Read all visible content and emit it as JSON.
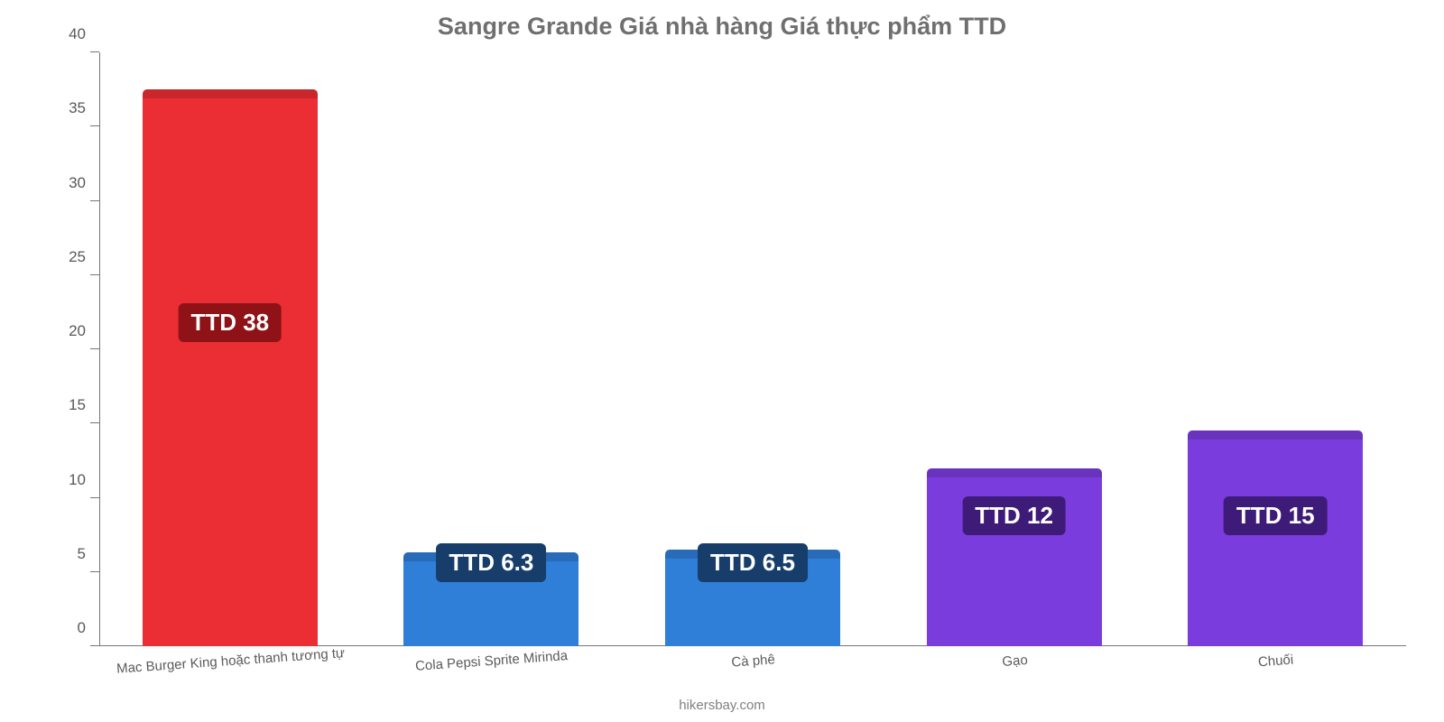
{
  "title": "Sangre Grande Giá nhà hàng Giá thực phẩm TTD",
  "title_color": "#6f6f6f",
  "title_fontsize": 27,
  "footer": "hikersbay.com",
  "footer_color": "#808080",
  "footer_fontsize": 15,
  "chart": {
    "type": "bar",
    "background_color": "#ffffff",
    "y": {
      "min": 0,
      "max": 40,
      "ticks": [
        0,
        5,
        10,
        15,
        20,
        25,
        30,
        35,
        40
      ],
      "tick_fontsize": 17,
      "tick_color": "#595959",
      "axis_color": "#767676"
    },
    "bar_width_ratio": 0.67,
    "categories": [
      {
        "label": "Mac Burger King hoặc thanh tương tự",
        "value": 37.5,
        "display": "TTD 38",
        "bar_color": "#ea2e33",
        "badge_color": "#8f1216"
      },
      {
        "label": "Cola Pepsi Sprite Mirinda",
        "value": 6.3,
        "display": "TTD 6.3",
        "bar_color": "#2f7ed8",
        "badge_color": "#173e6b"
      },
      {
        "label": "Cà phê",
        "value": 6.5,
        "display": "TTD 6.5",
        "bar_color": "#2f7ed8",
        "badge_color": "#173e6b"
      },
      {
        "label": "Gạo",
        "value": 12.0,
        "display": "TTD 12",
        "bar_color": "#7b3cdd",
        "badge_color": "#3f1b79"
      },
      {
        "label": "Chuối",
        "value": 14.5,
        "display": "TTD 15",
        "bar_color": "#7b3cdd",
        "badge_color": "#3f1b79"
      }
    ],
    "value_label_fontsize": 26,
    "x_label_color": "#5b5b5b"
  }
}
